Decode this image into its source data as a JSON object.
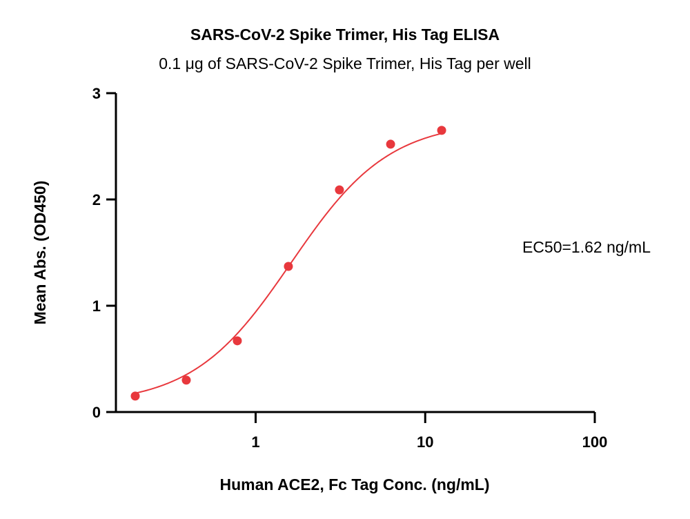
{
  "chart_data": {
    "type": "scatter",
    "title": "SARS-CoV-2 Spike Trimer, His Tag  ELISA",
    "subtitle": "0.1 μg of SARS-CoV-2 Spike Trimer, His Tag  per well",
    "xlabel": "Human ACE2, Fc Tag Conc. (ng/mL)",
    "ylabel": "Mean Abs. (OD450)",
    "xscale": "log",
    "xlim": [
      0.15,
      100
    ],
    "ylim": [
      0,
      3
    ],
    "xticks": [
      {
        "value": 1,
        "label": "1"
      },
      {
        "value": 10,
        "label": "10"
      },
      {
        "value": 100,
        "label": "100"
      }
    ],
    "yticks": [
      {
        "value": 0,
        "label": "0"
      },
      {
        "value": 1,
        "label": "1"
      },
      {
        "value": 2,
        "label": "2"
      },
      {
        "value": 3,
        "label": "3"
      }
    ],
    "grid": false,
    "legend": "none",
    "color": "#e8383d",
    "series": [
      {
        "points": [
          {
            "x": 0.195,
            "y": 0.15
          },
          {
            "x": 0.39,
            "y": 0.3
          },
          {
            "x": 0.78,
            "y": 0.67
          },
          {
            "x": 1.56,
            "y": 1.37
          },
          {
            "x": 3.12,
            "y": 2.09
          },
          {
            "x": 6.25,
            "y": 2.52
          },
          {
            "x": 12.5,
            "y": 2.65
          }
        ],
        "fit": {
          "model": "4PL",
          "bottom": 0.07,
          "top": 2.74,
          "ec50": 1.62,
          "hill": 1.5
        }
      }
    ],
    "annotations": [
      {
        "text": "EC50=1.62 ng/mL"
      }
    ]
  }
}
